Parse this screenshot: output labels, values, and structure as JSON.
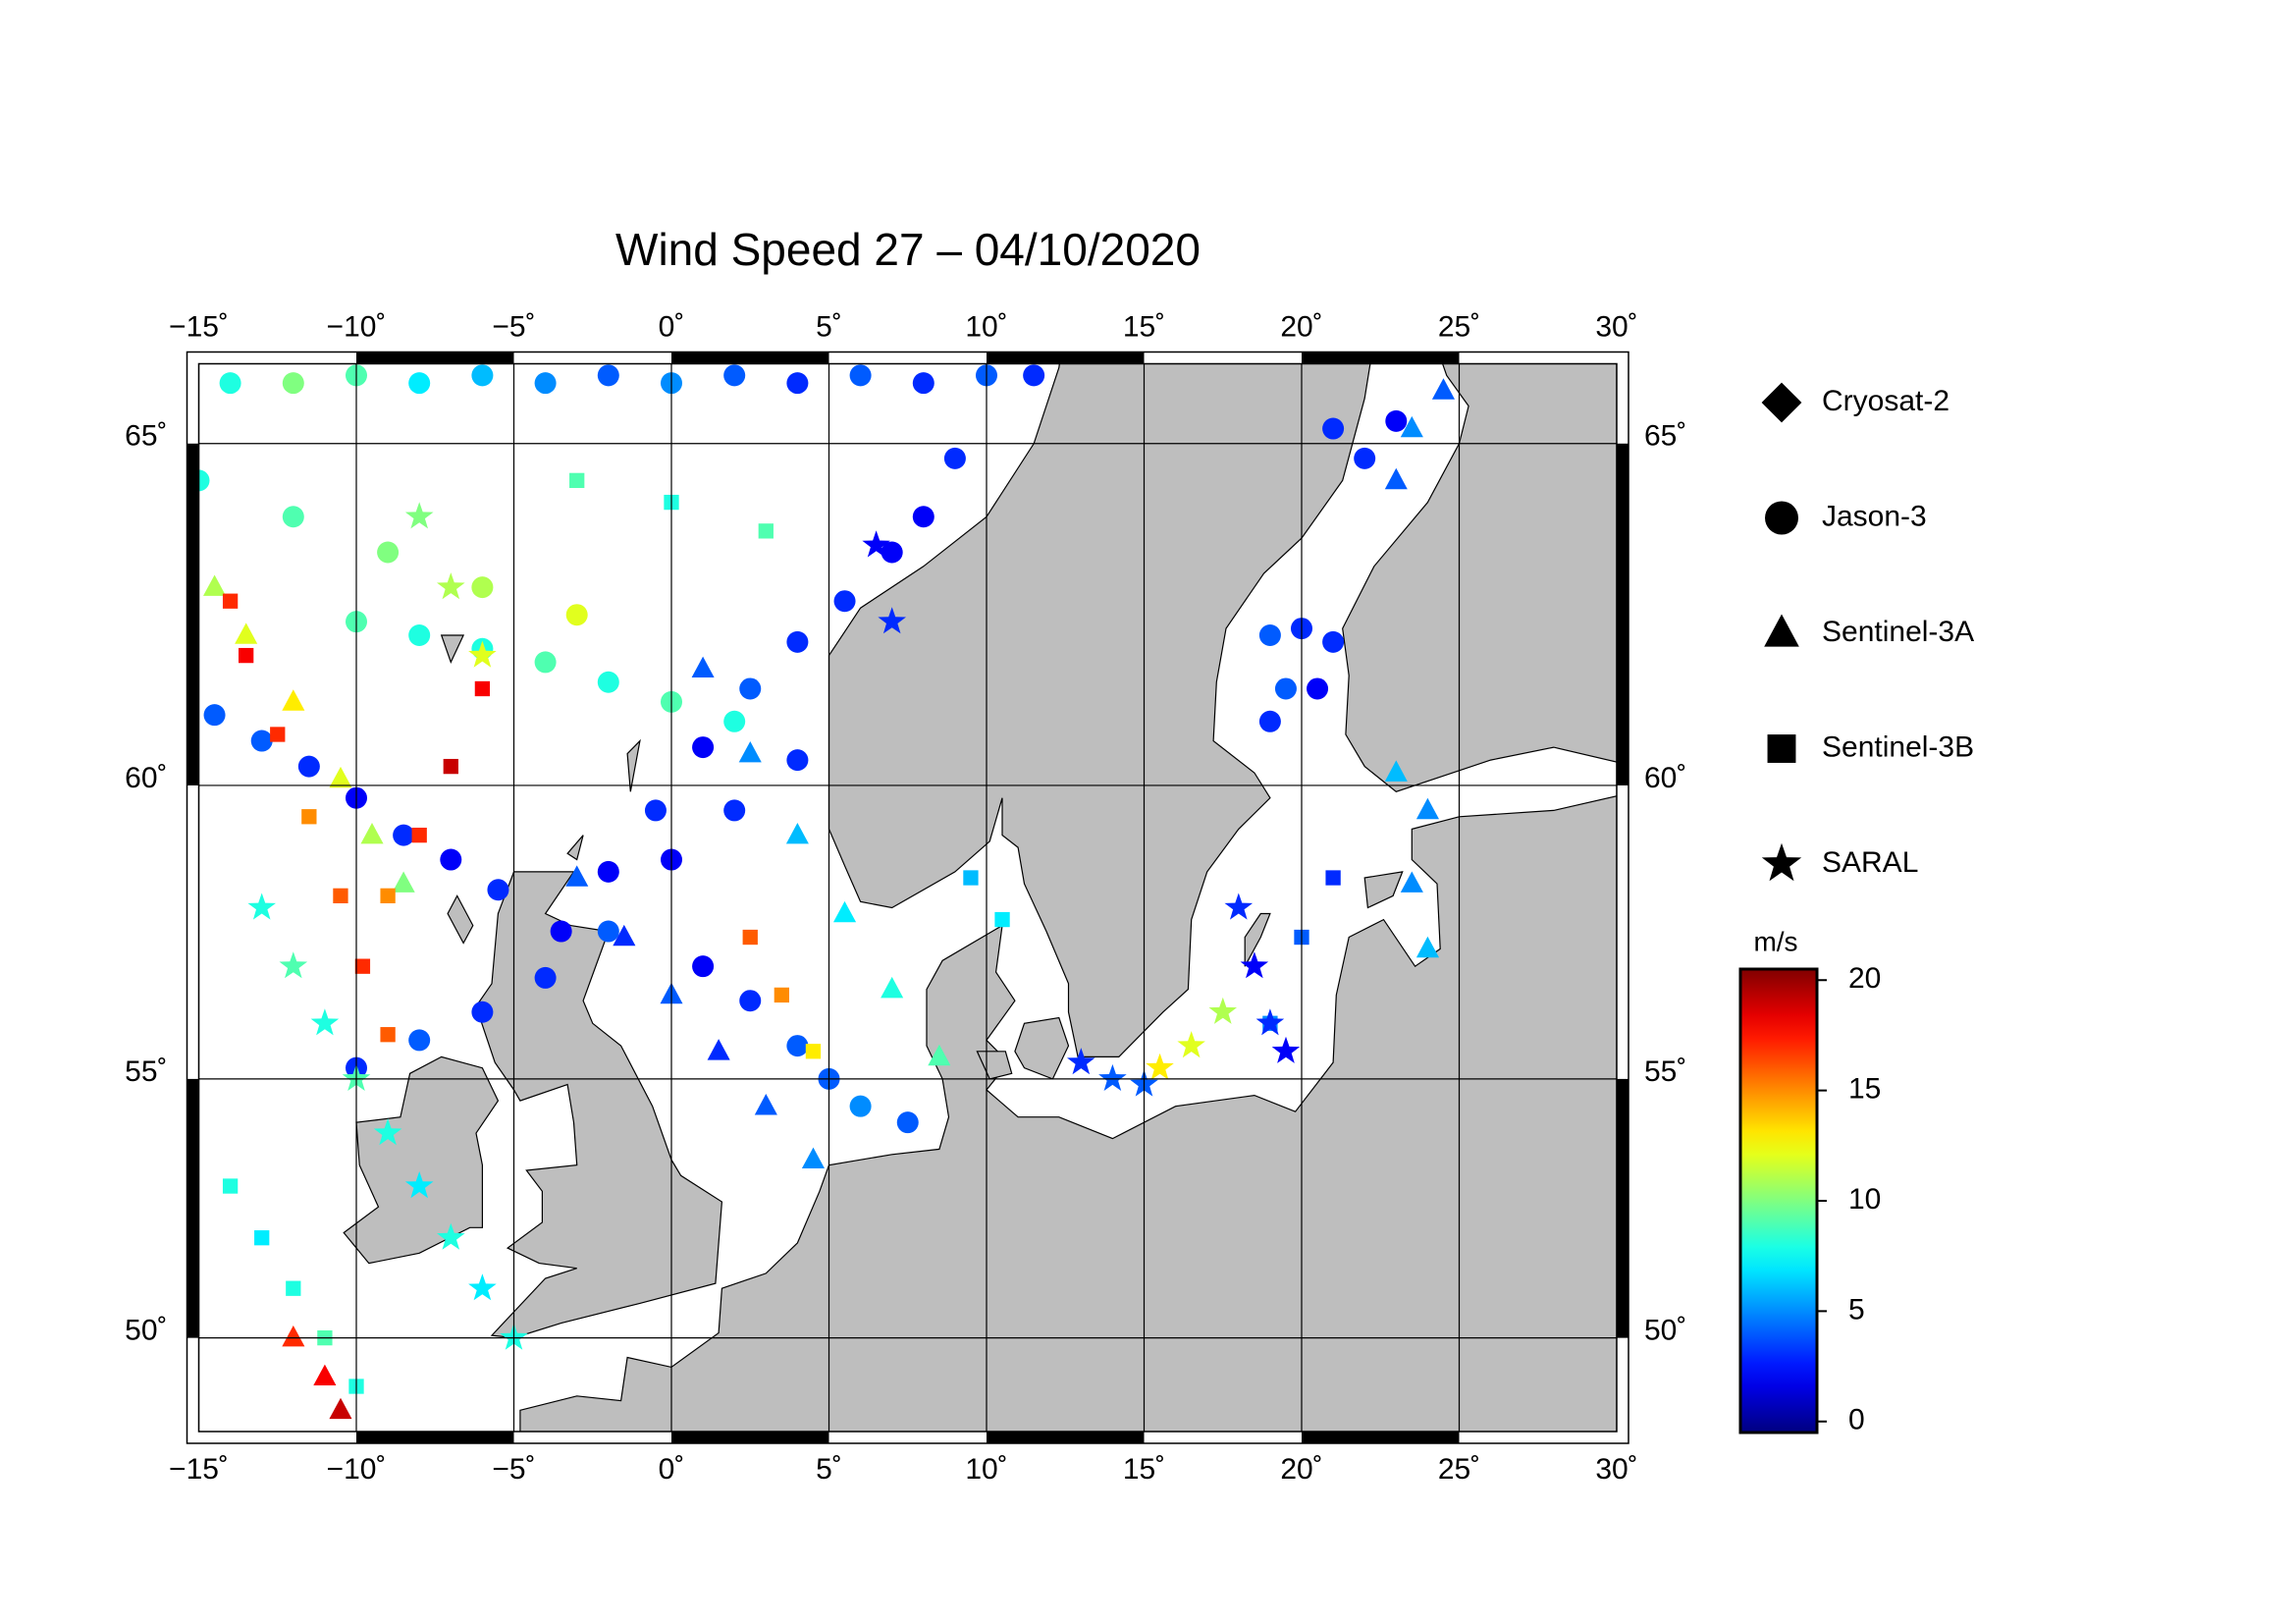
{
  "chart_data": {
    "type": "map",
    "title": "Wind Speed 27 – 04/10/2020",
    "projection": "mercator",
    "xlim": [
      -15,
      30
    ],
    "ylim": [
      48.05,
      66.05
    ],
    "xticks": [
      {
        "value": -15,
        "label": "−15˚"
      },
      {
        "value": -10,
        "label": "−10˚"
      },
      {
        "value": -5,
        "label": "−5˚"
      },
      {
        "value": 0,
        "label": "0˚"
      },
      {
        "value": 5,
        "label": "5˚"
      },
      {
        "value": 10,
        "label": "10˚"
      },
      {
        "value": 15,
        "label": "15˚"
      },
      {
        "value": 20,
        "label": "20˚"
      },
      {
        "value": 25,
        "label": "25˚"
      },
      {
        "value": 30,
        "label": "30˚"
      }
    ],
    "yticks": [
      {
        "value": 50,
        "label": "50˚"
      },
      {
        "value": 55,
        "label": "55˚"
      },
      {
        "value": 60,
        "label": "60˚"
      },
      {
        "value": 65,
        "label": "65˚"
      }
    ],
    "grid": true,
    "legend": "right",
    "colormap": "jet",
    "clim": [
      -0.5,
      20.5
    ],
    "colorbar_label": "m/s",
    "colorbar_ticks": [
      0,
      5,
      10,
      15,
      20
    ],
    "series": [
      {
        "name": "Cryosat-2",
        "marker": "diamond",
        "x": [],
        "y": [],
        "values": []
      },
      {
        "name": "Jason-3",
        "marker": "circle",
        "x": [
          -14,
          -12,
          -10,
          -8,
          -6,
          -4,
          -2,
          0,
          2,
          4,
          6,
          8,
          10,
          11.5,
          -14.5,
          -13,
          -11.5,
          -10,
          -8.5,
          -7,
          -5.5,
          9,
          8,
          7,
          5.5,
          4,
          2.5,
          1,
          -0.5,
          -2,
          -3.5,
          4,
          2,
          0,
          -2,
          -4,
          -6,
          -8,
          -10,
          1,
          2.5,
          4,
          5,
          6,
          7.5,
          19,
          20,
          21,
          19.5,
          20.5,
          19,
          21,
          22,
          23,
          -10,
          -8,
          -6,
          -4,
          -2,
          0,
          2,
          -15,
          -12,
          -9,
          -6,
          -3
        ],
        "y": [
          65.8,
          65.8,
          65.9,
          65.8,
          65.9,
          65.8,
          65.9,
          65.8,
          65.9,
          65.8,
          65.9,
          65.8,
          65.9,
          65.9,
          61.1,
          60.7,
          60.3,
          59.8,
          59.2,
          58.8,
          58.3,
          64.8,
          64,
          63.5,
          62.8,
          62.2,
          61.5,
          60.6,
          59.6,
          58.6,
          57.6,
          60.4,
          59.6,
          58.8,
          57.6,
          56.8,
          56.2,
          55.7,
          55.2,
          57,
          56.4,
          55.6,
          55,
          54.5,
          54.2,
          62.3,
          62.4,
          62.2,
          61.5,
          61.5,
          61,
          65.2,
          64.8,
          65.3,
          62.5,
          62.3,
          62.1,
          61.9,
          61.6,
          61.3,
          61,
          64.5,
          64,
          63.5,
          63,
          62.6
        ],
        "values": [
          8,
          10,
          9,
          7,
          6,
          5,
          4,
          5,
          4,
          3,
          4,
          3,
          4,
          3,
          4,
          4,
          3,
          2,
          3,
          2,
          3,
          3,
          2,
          2,
          3,
          3,
          4,
          2,
          3,
          2,
          2,
          3,
          3,
          2,
          4,
          3,
          3,
          4,
          3,
          2,
          3,
          4,
          4,
          5,
          4,
          4,
          3,
          3,
          4,
          2,
          3,
          3,
          3,
          2,
          9,
          8,
          8,
          9,
          8,
          9,
          8,
          8,
          9,
          10,
          11,
          12
        ]
      },
      {
        "name": "Sentinel-3A",
        "marker": "triangle",
        "x": [
          -3,
          -1.5,
          0,
          1.5,
          3,
          4.5,
          1,
          2.5,
          4,
          5.5,
          7,
          8.5,
          -14.5,
          -13.5,
          -12,
          -10.5,
          -9.5,
          -8.5,
          -12,
          -11,
          -10.5,
          23,
          24,
          23.5,
          24,
          24.5,
          23.5,
          23
        ],
        "y": [
          58.5,
          57.5,
          56.5,
          55.5,
          54.5,
          53.5,
          61.8,
          60.5,
          59.2,
          57.9,
          56.6,
          55.4,
          63,
          62.3,
          61.3,
          60.1,
          59.2,
          58.4,
          50,
          49.2,
          48.5,
          60.2,
          59.6,
          58.4,
          57.3,
          65.7,
          65.2,
          64.5
        ],
        "values": [
          4,
          3,
          4,
          3,
          4,
          5,
          4,
          5,
          6,
          7,
          8,
          9,
          11,
          12,
          13,
          12,
          11,
          10,
          17,
          18,
          19,
          6,
          5,
          5,
          6,
          4,
          5,
          4
        ]
      },
      {
        "name": "Sentinel-3B",
        "marker": "square",
        "x": [
          -14,
          -13.5,
          -12.5,
          -11.5,
          -10.5,
          -9.8,
          -9,
          -6,
          -7,
          -8,
          -9,
          -14,
          -13,
          -12,
          -11,
          -10,
          2.5,
          3.5,
          4.5,
          20,
          21,
          19,
          9.5,
          10.5,
          -3,
          0,
          3
        ],
        "y": [
          62.8,
          62,
          60.8,
          59.5,
          58.2,
          57,
          55.8,
          61.5,
          60.3,
          59.2,
          58.2,
          53,
          52,
          51,
          50,
          49,
          57.5,
          56.5,
          55.5,
          57.5,
          58.5,
          56,
          58.5,
          57.8,
          64.5,
          64.2,
          63.8
        ],
        "values": [
          17,
          18,
          17,
          15,
          16,
          17,
          16,
          18,
          19,
          17,
          15,
          8,
          7,
          8,
          9,
          8,
          16,
          15,
          13,
          4,
          3,
          5,
          6,
          7,
          9,
          8,
          9
        ]
      },
      {
        "name": "SARAL",
        "marker": "star",
        "x": [
          -13,
          -12,
          -11,
          -10,
          -9,
          -8,
          -7,
          -6,
          -5,
          6.5,
          7,
          18,
          18.5,
          19,
          19.5,
          13,
          14,
          15,
          15.5,
          16.5,
          17.5,
          -8,
          -7,
          -6
        ],
        "y": [
          58,
          57,
          56,
          55,
          54,
          53,
          52,
          51,
          50,
          63.6,
          62.5,
          58,
          57,
          56,
          55.5,
          55.3,
          55,
          54.9,
          55.2,
          55.6,
          56.2,
          64,
          63,
          62
        ],
        "values": [
          8,
          9,
          8,
          9,
          8,
          7,
          8,
          7,
          8,
          2,
          3,
          3,
          2,
          3,
          2,
          3,
          4,
          4,
          13,
          12,
          11,
          10,
          11,
          12
        ]
      }
    ]
  }
}
